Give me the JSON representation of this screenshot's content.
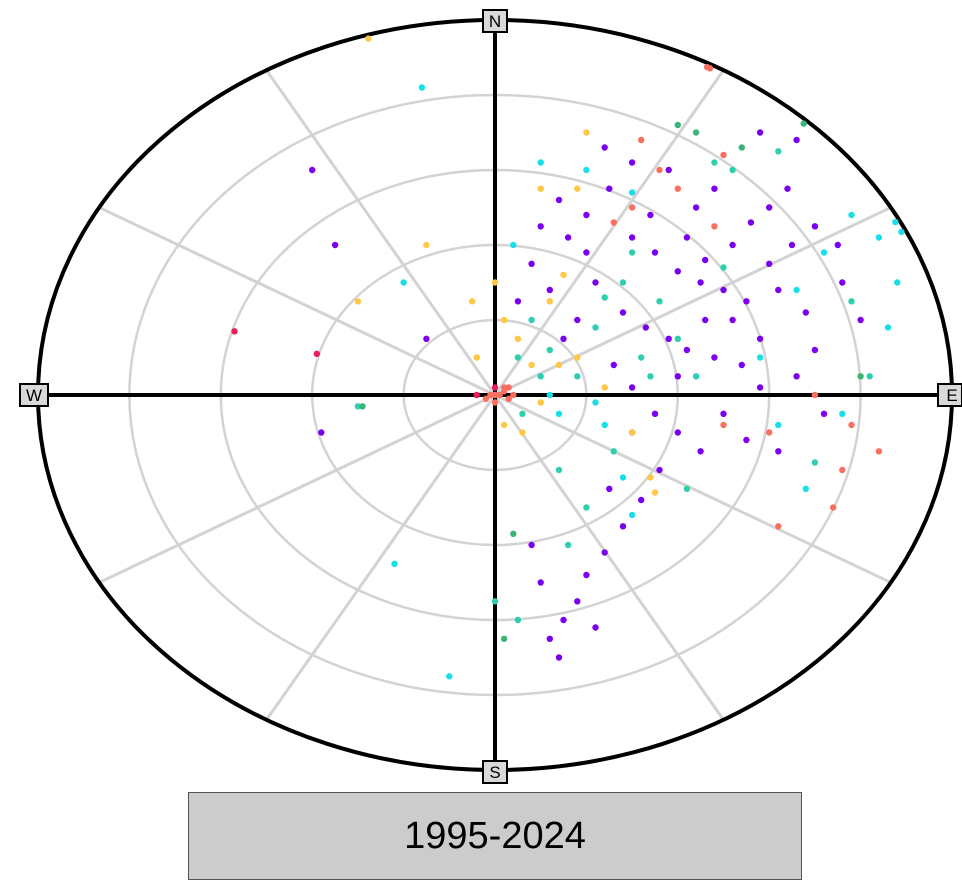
{
  "period_label": "1995-2024",
  "compass": {
    "north": "N",
    "south": "S",
    "east": "E",
    "west": "W"
  },
  "colors": {
    "ring": "#d3d3d3",
    "spoke": "#d3d3d3",
    "axis": "#000000",
    "palette": [
      "#7b00f0",
      "#2ecfb0",
      "#19e0e8",
      "#ffc844",
      "#fa7060",
      "#e61e5a",
      "#3cb478"
    ]
  },
  "chart_data": {
    "type": "scatter",
    "title": "",
    "coordinate_system": "polar",
    "radial_rings": 4,
    "spokes_deg": [
      0,
      30,
      60,
      90,
      120,
      150,
      180,
      210,
      240,
      270,
      300,
      330
    ],
    "x_range": [
      -1,
      1
    ],
    "y_range": [
      -1,
      1
    ],
    "series": [
      {
        "color": "#7b00f0",
        "points": [
          [
            0.1,
            0.45
          ],
          [
            0.14,
            0.52
          ],
          [
            0.2,
            0.48
          ],
          [
            0.25,
            0.55
          ],
          [
            0.3,
            0.42
          ],
          [
            0.35,
            0.38
          ],
          [
            0.4,
            0.33
          ],
          [
            0.45,
            0.3
          ],
          [
            0.5,
            0.28
          ],
          [
            0.55,
            0.25
          ],
          [
            0.22,
            0.3
          ],
          [
            0.28,
            0.22
          ],
          [
            0.33,
            0.18
          ],
          [
            0.38,
            0.15
          ],
          [
            0.42,
            0.12
          ],
          [
            0.48,
            0.1
          ],
          [
            0.52,
            0.2
          ],
          [
            0.58,
            0.15
          ],
          [
            0.6,
            0.35
          ],
          [
            0.65,
            0.4
          ],
          [
            0.18,
            0.2
          ],
          [
            0.15,
            0.15
          ],
          [
            0.12,
            0.28
          ],
          [
            0.08,
            0.35
          ],
          [
            0.05,
            0.25
          ],
          [
            0.26,
            0.08
          ],
          [
            0.3,
            0.02
          ],
          [
            0.35,
            -0.05
          ],
          [
            0.4,
            -0.1
          ],
          [
            0.45,
            -0.15
          ],
          [
            0.5,
            -0.05
          ],
          [
            0.55,
            -0.12
          ],
          [
            0.36,
            -0.2
          ],
          [
            0.32,
            -0.28
          ],
          [
            0.28,
            -0.35
          ],
          [
            0.24,
            -0.42
          ],
          [
            0.2,
            -0.48
          ],
          [
            0.18,
            -0.55
          ],
          [
            0.15,
            -0.6
          ],
          [
            0.12,
            -0.65
          ],
          [
            0.44,
            0.5
          ],
          [
            0.48,
            0.55
          ],
          [
            0.38,
            0.6
          ],
          [
            0.3,
            0.62
          ],
          [
            0.24,
            0.66
          ],
          [
            0.62,
            0.28
          ],
          [
            0.68,
            0.22
          ],
          [
            0.7,
            0.12
          ],
          [
            0.66,
            0.05
          ],
          [
            0.72,
            -0.05
          ],
          [
            0.2,
            0.38
          ],
          [
            0.16,
            0.42
          ],
          [
            0.34,
            0.48
          ],
          [
            0.42,
            0.42
          ],
          [
            0.46,
            0.36
          ],
          [
            0.52,
            0.4
          ],
          [
            0.56,
            0.46
          ],
          [
            0.6,
            0.5
          ],
          [
            0.64,
            0.55
          ],
          [
            0.7,
            0.45
          ],
          [
            -0.4,
            0.6
          ],
          [
            -0.35,
            0.4
          ],
          [
            -0.15,
            0.15
          ],
          [
            -0.38,
            -0.1
          ],
          [
            0.08,
            -0.4
          ],
          [
            0.1,
            -0.5
          ],
          [
            0.14,
            -0.7
          ],
          [
            0.22,
            -0.62
          ],
          [
            0.25,
            -0.25
          ],
          [
            0.3,
            -0.1
          ],
          [
            0.4,
            0.05
          ],
          [
            0.46,
            0.2
          ],
          [
            0.54,
            0.08
          ],
          [
            0.58,
            0.02
          ],
          [
            0.62,
            -0.15
          ],
          [
            0.76,
            0.3
          ],
          [
            0.8,
            0.2
          ],
          [
            0.75,
            0.4
          ],
          [
            0.66,
            0.68
          ],
          [
            0.58,
            0.7
          ]
        ]
      },
      {
        "color": "#2ecfb0",
        "points": [
          [
            0.05,
            0.1
          ],
          [
            0.08,
            0.2
          ],
          [
            0.12,
            0.12
          ],
          [
            0.18,
            0.05
          ],
          [
            0.22,
            0.18
          ],
          [
            0.28,
            0.3
          ],
          [
            0.32,
            0.1
          ],
          [
            0.36,
            0.25
          ],
          [
            0.26,
            -0.15
          ],
          [
            0.2,
            -0.3
          ],
          [
            0.16,
            -0.4
          ],
          [
            0.4,
            0.15
          ],
          [
            0.44,
            0.05
          ],
          [
            0.5,
            0.34
          ],
          [
            0.1,
            0.05
          ],
          [
            0.06,
            -0.05
          ],
          [
            0.14,
            -0.2
          ],
          [
            -0.3,
            -0.03
          ],
          [
            0.0,
            -0.55
          ],
          [
            0.05,
            -0.6
          ],
          [
            0.48,
            0.62
          ],
          [
            0.52,
            0.6
          ],
          [
            0.62,
            0.65
          ],
          [
            0.78,
            0.25
          ],
          [
            0.82,
            0.05
          ],
          [
            0.7,
            -0.18
          ],
          [
            0.3,
            0.38
          ],
          [
            0.24,
            0.26
          ],
          [
            0.34,
            0.05
          ],
          [
            0.42,
            -0.25
          ]
        ]
      },
      {
        "color": "#19e0e8",
        "points": [
          [
            0.04,
            0.4
          ],
          [
            0.1,
            0.62
          ],
          [
            0.2,
            0.6
          ],
          [
            0.3,
            0.54
          ],
          [
            0.58,
            0.1
          ],
          [
            0.62,
            -0.08
          ],
          [
            0.68,
            -0.25
          ],
          [
            0.72,
            0.38
          ],
          [
            0.78,
            0.48
          ],
          [
            0.84,
            0.42
          ],
          [
            0.88,
            0.3
          ],
          [
            0.92,
            0.45
          ],
          [
            0.86,
            0.18
          ],
          [
            0.14,
            -0.05
          ],
          [
            0.22,
            -0.02
          ],
          [
            0.28,
            -0.22
          ],
          [
            0.12,
            0.0
          ],
          [
            -0.2,
            0.3
          ],
          [
            -0.22,
            -0.45
          ],
          [
            -0.1,
            -0.75
          ],
          [
            -0.16,
            0.82
          ],
          [
            0.95,
            0.5
          ],
          [
            0.76,
            -0.05
          ],
          [
            0.66,
            0.28
          ],
          [
            0.3,
            -0.32
          ],
          [
            0.24,
            -0.08
          ]
        ]
      },
      {
        "color": "#ffc844",
        "points": [
          [
            0.0,
            0.3
          ],
          [
            0.02,
            0.2
          ],
          [
            0.05,
            0.15
          ],
          [
            0.08,
            0.08
          ],
          [
            0.1,
            -0.02
          ],
          [
            0.06,
            -0.1
          ],
          [
            0.12,
            0.25
          ],
          [
            0.15,
            0.32
          ],
          [
            0.18,
            0.1
          ],
          [
            0.24,
            0.02
          ],
          [
            0.3,
            -0.1
          ],
          [
            0.35,
            -0.26
          ],
          [
            0.18,
            0.55
          ],
          [
            0.1,
            0.55
          ],
          [
            -0.05,
            0.25
          ],
          [
            -0.04,
            0.1
          ],
          [
            -0.15,
            0.4
          ],
          [
            -0.3,
            0.25
          ],
          [
            0.02,
            -0.08
          ],
          [
            -0.28,
            0.96
          ],
          [
            0.2,
            0.7
          ],
          [
            0.14,
            0.08
          ],
          [
            0.34,
            -0.22
          ]
        ]
      },
      {
        "color": "#fa7060",
        "points": [
          [
            0.0,
            0.0
          ],
          [
            0.01,
            0.0
          ],
          [
            0.02,
            0.01
          ],
          [
            0.03,
            -0.01
          ],
          [
            -0.01,
            0.0
          ],
          [
            0.02,
            0.02
          ],
          [
            0.04,
            0.0
          ],
          [
            0.0,
            -0.02
          ],
          [
            -0.02,
            -0.01
          ],
          [
            0.03,
            0.02
          ],
          [
            0.5,
            -0.08
          ],
          [
            0.6,
            -0.1
          ],
          [
            0.7,
            0.0
          ],
          [
            0.78,
            -0.08
          ],
          [
            0.74,
            -0.3
          ],
          [
            0.62,
            -0.35
          ],
          [
            0.48,
            0.45
          ],
          [
            0.4,
            0.55
          ],
          [
            0.3,
            0.5
          ],
          [
            0.32,
            0.68
          ],
          [
            0.5,
            0.64
          ],
          [
            0.52,
            0.98
          ],
          [
            0.54,
            1.0
          ],
          [
            0.84,
            -0.15
          ],
          [
            0.76,
            -0.2
          ],
          [
            0.26,
            0.46
          ],
          [
            0.36,
            0.6
          ]
        ]
      },
      {
        "color": "#e61e5a",
        "points": [
          [
            -0.57,
            0.17
          ],
          [
            -0.39,
            0.11
          ],
          [
            -0.04,
            0.0
          ],
          [
            0.0,
            0.02
          ]
        ]
      },
      {
        "color": "#3cb478",
        "points": [
          [
            -0.29,
            -0.03
          ],
          [
            0.04,
            -0.37
          ],
          [
            0.02,
            -0.65
          ],
          [
            0.7,
            0.75
          ],
          [
            0.8,
            0.05
          ],
          [
            0.4,
            0.72
          ],
          [
            0.44,
            0.7
          ],
          [
            0.54,
            0.66
          ]
        ]
      }
    ]
  }
}
